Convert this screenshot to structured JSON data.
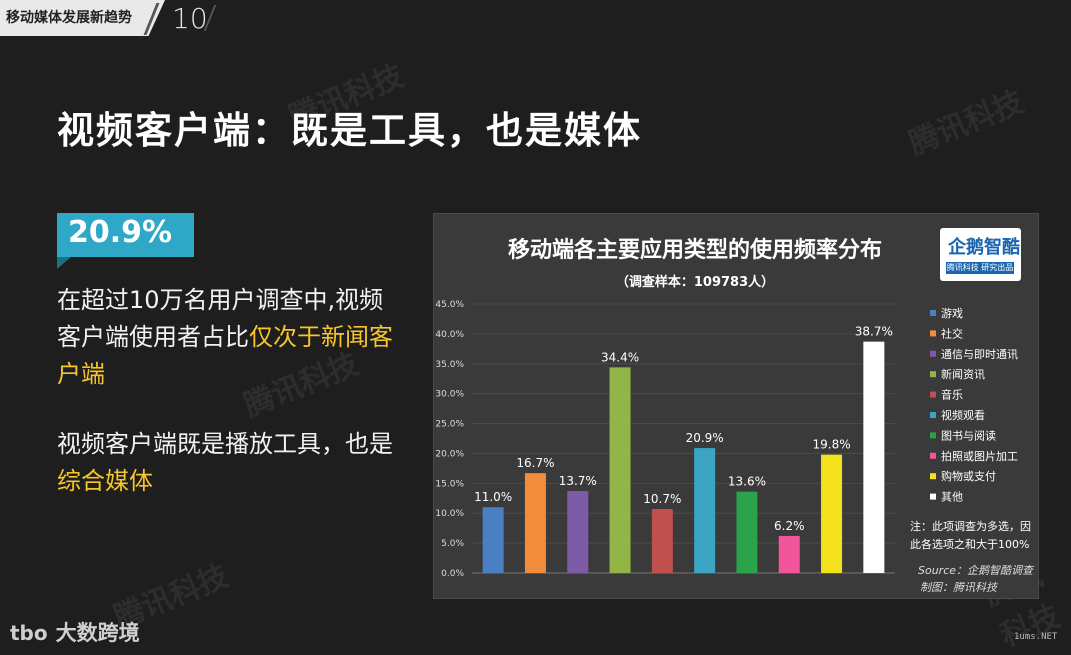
{
  "header": {
    "section": "移动媒体发展新趋势",
    "page_number": "10"
  },
  "slide_title": "视频客户端：既是工具，也是媒体",
  "highlight_value": "20.9%",
  "paragraph1": {
    "normal": "在超过10万名用户调查中,视频客户端使用者占比",
    "yellow": "仅次于新闻客户端"
  },
  "paragraph2": {
    "normal": "视频客户端既是播放工具，也是",
    "yellow": "综合媒体"
  },
  "watermark": "腾讯科技",
  "chart_logo": {
    "main": "企鹅智酷",
    "sub": "腾讯科技 研究出品"
  },
  "bottom_logo": {
    "mark": "tbo",
    "text": "大数跨境"
  },
  "site": "1ums.NET",
  "chart_data": {
    "type": "bar",
    "title": "移动端各主要应用类型的使用频率分布",
    "subtitle": "（调查样本：109783人）",
    "categories": [
      "游戏",
      "社交",
      "通信与即时通讯",
      "新闻资讯",
      "音乐",
      "视频观看",
      "图书与阅读",
      "拍照或图片加工",
      "购物或支付",
      "其他"
    ],
    "values": [
      11.0,
      16.7,
      13.7,
      34.4,
      10.7,
      20.9,
      13.6,
      6.2,
      19.8,
      38.7
    ],
    "value_labels": [
      "11.0%",
      "16.7%",
      "13.7%",
      "34.4%",
      "10.7%",
      "20.9%",
      "13.6%",
      "6.2%",
      "19.8%",
      "38.7%"
    ],
    "colors": [
      "#4a7fc1",
      "#f28c3b",
      "#7e5ba7",
      "#93b548",
      "#c0504d",
      "#3da5c4",
      "#2aa34a",
      "#f1559a",
      "#f2e21c",
      "#ffffff"
    ],
    "yticks": [
      "0.0%",
      "5.0%",
      "10.0%",
      "15.0%",
      "20.0%",
      "25.0%",
      "30.0%",
      "35.0%",
      "40.0%",
      "45.0%"
    ],
    "ylim": [
      0,
      45
    ],
    "legend_position": "right",
    "note": "注：此项调查为多选，因此各选项之和大于100%",
    "source": "Source：企鹅智酷调查",
    "made_by": "制图：腾讯科技"
  }
}
